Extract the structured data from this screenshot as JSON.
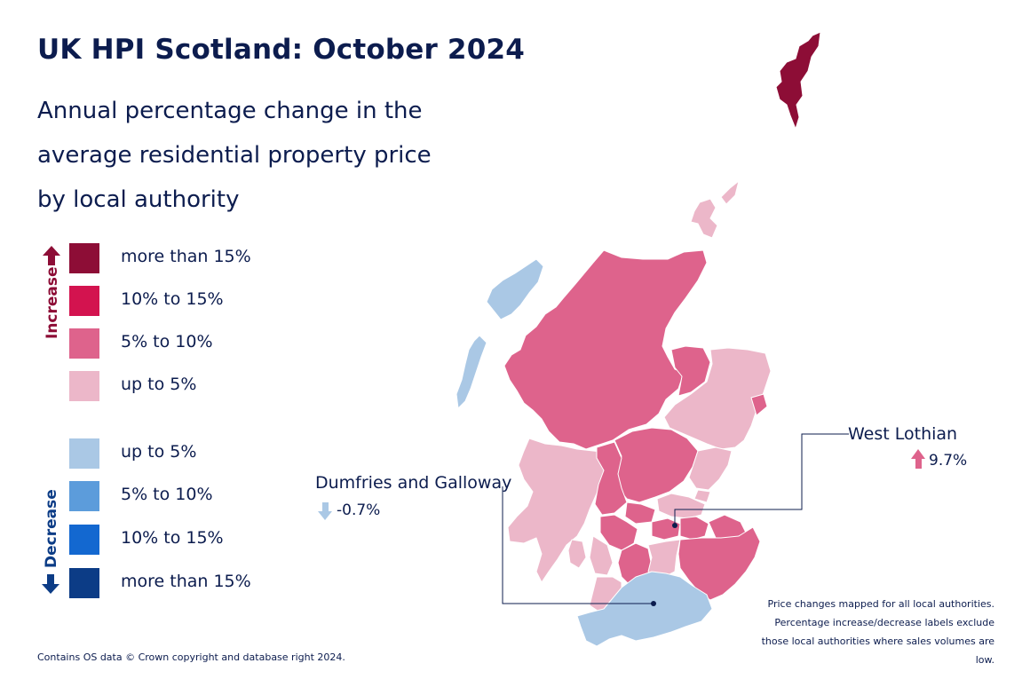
{
  "title": "UK HPI Scotland: October 2024",
  "subtitle": "Annual percentage change in the average residential property price by local authority",
  "legend": {
    "increase_label": "Increase",
    "decrease_label": "Decrease",
    "increase": [
      {
        "label": "more than 15%",
        "color": "#8d0d36"
      },
      {
        "label": "10% to 15%",
        "color": "#d3134f"
      },
      {
        "label": "5% to 10%",
        "color": "#de638c"
      },
      {
        "label": "up to 5%",
        "color": "#ecb7c9"
      }
    ],
    "decrease": [
      {
        "label": "up to 5%",
        "color": "#aac8e5"
      },
      {
        "label": "5% to 10%",
        "color": "#5c9cdb"
      },
      {
        "label": "10% to 15%",
        "color": "#1368d0"
      },
      {
        "label": "more than 15%",
        "color": "#0c3c86"
      }
    ]
  },
  "callouts": {
    "dumfries": {
      "name": "Dumfries and Galloway",
      "value": "-0.7%",
      "direction": "down",
      "color": "#aac8e5"
    },
    "west_lothian": {
      "name": "West Lothian",
      "value": "9.7%",
      "direction": "up",
      "color": "#de638c"
    }
  },
  "note": "Price changes mapped for all local authorities. Percentage increase/decrease labels exclude those local authorities where sales volumes are low.",
  "source": "Contains OS data © Crown copyright and database right 2024.",
  "colors": {
    "text": "#0c1c4e",
    "map_border": "#ffffff"
  }
}
